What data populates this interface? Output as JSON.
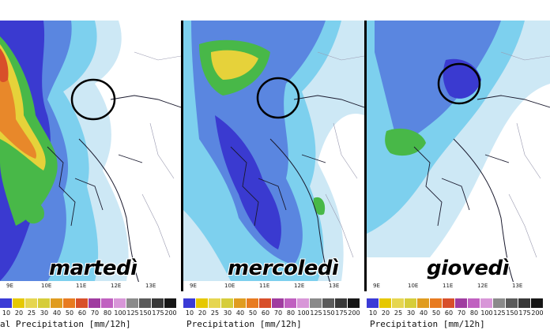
{
  "panels": [
    {
      "label": "martedì",
      "ticks": [
        "9E",
        "10E",
        "11E",
        "12E",
        "13E"
      ],
      "precip_areas": [
        {
          "level": 20,
          "shape": "west"
        },
        {
          "level": 40,
          "shape": "north-alps"
        },
        {
          "level": 70,
          "shape": "north-alps-core"
        }
      ]
    },
    {
      "label": "mercoledì",
      "ticks": [
        "9E",
        "10E",
        "11E",
        "12E",
        "13E"
      ],
      "precip_areas": []
    },
    {
      "label": "giovedì",
      "ticks": [
        "9E",
        "10E",
        "11E",
        "12E",
        "13E"
      ],
      "precip_areas": []
    }
  ],
  "legend": {
    "values": [
      "10",
      "20",
      "25",
      "30",
      "40",
      "50",
      "60",
      "70",
      "80",
      "100",
      "125",
      "150",
      "175",
      "200"
    ],
    "colors": [
      "#3b3bd6",
      "#e6c800",
      "#e6d650",
      "#d6cd3a",
      "#e09c20",
      "#e87b20",
      "#d84f2a",
      "#a03ca0",
      "#c060c0",
      "#d896d8",
      "#8a8a8a",
      "#5a5a5a",
      "#383838",
      "#161616"
    ],
    "title_partial": "al Precipitation [mm/12h]",
    "title": "Precipitation [mm/12h]"
  },
  "colors": {
    "light": "#cde8f5",
    "cyan": "#7dd0ee",
    "blue": "#5a86e0",
    "deep": "#3a3ad0",
    "green": "#48b848",
    "yellow": "#e6d23a",
    "orange": "#e8882a",
    "border": "#1a1a2e",
    "circle": "#000000"
  }
}
